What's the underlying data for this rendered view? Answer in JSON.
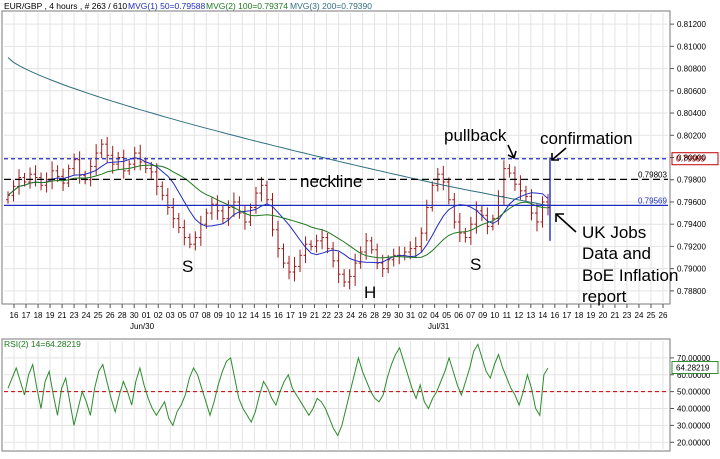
{
  "chart_data": [
    {
      "type": "line",
      "style": "ohlc-bars",
      "title": "EUR/GBP , 4 hours , # 263 / 610",
      "moving_averages": [
        {
          "label": "MVG(1) 50=0.79588",
          "color": "#1f2dbf"
        },
        {
          "label": "MVG(2) 100=0.79374",
          "color": "#1e7a1e"
        },
        {
          "label": "MVG(3) 200=0.79390",
          "color": "#2f6f7f"
        }
      ],
      "ylim": [
        0.787,
        0.813
      ],
      "y_ticks": [
        "0.78800",
        "0.79000",
        "0.79200",
        "0.79400",
        "0.79600",
        "0.79800",
        "0.80000",
        "0.80200",
        "0.80400",
        "0.80600",
        "0.80800",
        "0.81000",
        "0.81200"
      ],
      "x_ticks": [
        "16",
        "17",
        "18",
        "19",
        "21",
        "23",
        "24",
        "25",
        "26",
        "28",
        "30",
        "01",
        "02",
        "03",
        "05",
        "07",
        "08",
        "09",
        "10",
        "12",
        "14",
        "15",
        "16",
        "17",
        "19",
        "21",
        "22",
        "23",
        "24",
        "26",
        "28",
        "29",
        "30",
        "31",
        "02",
        "04",
        "05",
        "06",
        "07",
        "09",
        "10",
        "11",
        "12",
        "13",
        "14",
        "16",
        "17",
        "18",
        "19",
        "20",
        "21",
        "23",
        "24",
        "25",
        "26"
      ],
      "month_labels": [
        "Jun/30",
        "Jul/31"
      ],
      "levels": [
        {
          "label": "0.79989",
          "value": 0.79989,
          "color": "#1f2dbf",
          "style": "dashed",
          "boxed": true
        },
        {
          "label": "0.79803",
          "value": 0.79803,
          "color": "#000000",
          "style": "dashed"
        },
        {
          "label": "0.79569",
          "value": 0.79569,
          "color": "#1f2dbf",
          "style": "solid"
        }
      ],
      "last_price": 0.7956,
      "annotations": [
        {
          "text": "neckline"
        },
        {
          "text": "pullback"
        },
        {
          "text": "confirmation"
        },
        {
          "text": "S"
        },
        {
          "text": "H"
        },
        {
          "text": "S"
        },
        {
          "text": "UK Jobs"
        },
        {
          "text": "Data and"
        },
        {
          "text": "BoE Inflation"
        },
        {
          "text": "report"
        }
      ],
      "close_series": [
        0.7966,
        0.7974,
        0.7982,
        0.7978,
        0.7985,
        0.7982,
        0.7975,
        0.798,
        0.7988,
        0.7983,
        0.7977,
        0.799,
        0.7998,
        0.7984,
        0.798,
        0.7992,
        0.8004,
        0.8012,
        0.8002,
        0.7994,
        0.8,
        0.7988,
        0.7994,
        0.8004,
        0.7996,
        0.799,
        0.7987,
        0.7974,
        0.7966,
        0.7955,
        0.7945,
        0.7937,
        0.7928,
        0.7922,
        0.7928,
        0.794,
        0.795,
        0.7958,
        0.7952,
        0.7945,
        0.7955,
        0.796,
        0.795,
        0.7942,
        0.7955,
        0.7968,
        0.7975,
        0.7962,
        0.7935,
        0.7918,
        0.7905,
        0.7897,
        0.7902,
        0.7912,
        0.7922,
        0.792,
        0.7925,
        0.7928,
        0.7918,
        0.7907,
        0.7895,
        0.7888,
        0.7893,
        0.7905,
        0.7915,
        0.7925,
        0.7917,
        0.7905,
        0.79,
        0.7908,
        0.7912,
        0.7912,
        0.7915,
        0.7918,
        0.792,
        0.7932,
        0.7955,
        0.7975,
        0.7985,
        0.7978,
        0.7962,
        0.7942,
        0.7932,
        0.7928,
        0.794,
        0.7952,
        0.7948,
        0.7938,
        0.7945,
        0.7965,
        0.799,
        0.7986,
        0.7976,
        0.797,
        0.7965,
        0.795,
        0.7942,
        0.796,
        0.7955
      ]
    },
    {
      "type": "line",
      "title": "RSI(2) 14=64.28219",
      "ylim": [
        16,
        80
      ],
      "y_ticks": [
        "20.00000",
        "30.00000",
        "40.00000",
        "50.00000",
        "60.00000",
        "70.00000"
      ],
      "levels": [
        {
          "label": "50",
          "value": 50,
          "color": "#c00000",
          "style": "dashed"
        }
      ],
      "last_value_label": "64.28219",
      "series": [
        {
          "values": [
            52,
            58,
            64,
            56,
            48,
            60,
            66,
            52,
            40,
            56,
            62,
            48,
            36,
            52,
            58,
            44,
            30,
            40,
            50,
            44,
            36,
            52,
            62,
            66,
            56,
            46,
            38,
            48,
            56,
            50,
            42,
            56,
            64,
            54,
            46,
            40,
            36,
            40,
            44,
            34,
            30,
            38,
            42,
            48,
            58,
            64,
            60,
            52,
            44,
            36,
            44,
            54,
            62,
            68,
            70,
            58,
            46,
            40,
            36,
            32,
            38,
            48,
            56,
            52,
            46,
            42,
            50,
            56,
            60,
            52,
            48,
            44,
            40,
            36,
            40,
            46,
            44,
            40,
            34,
            28,
            24,
            30,
            40,
            50,
            60,
            70,
            62,
            56,
            50,
            46,
            44,
            48,
            58,
            66,
            72,
            76,
            68,
            60,
            52,
            46,
            54,
            44,
            40,
            46,
            50,
            56,
            62,
            70,
            62,
            54,
            48,
            56,
            64,
            74,
            78,
            70,
            62,
            58,
            66,
            72,
            64,
            58,
            52,
            48,
            42,
            50,
            60,
            52,
            40,
            36,
            60,
            64
          ]
        }
      ]
    }
  ]
}
